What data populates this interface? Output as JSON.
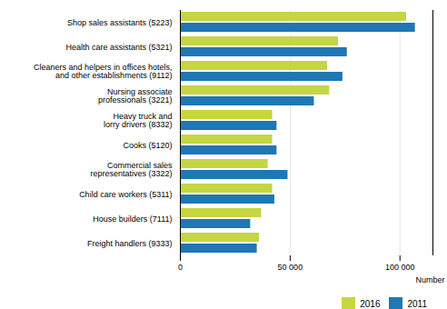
{
  "chart_data": {
    "type": "bar",
    "orientation": "horizontal",
    "categories": [
      "Shop sales assistants (5223)",
      "Health care assistants (5321)",
      "Cleaners and helpers in offices hotels,\nand other establishments (9112)",
      "Nursing associate\nprofessionals (3221)",
      "Heavy truck and\nlorry drivers (8332)",
      "Cooks (5120)",
      "Commercial sales\nrepresentatives (3322)",
      "Child care workers (5311)",
      "House builders (7111)",
      "Freight handlers (9333)"
    ],
    "series": [
      {
        "name": "2016",
        "color": "#c5d640",
        "values": [
          103000,
          72000,
          67000,
          68000,
          42000,
          42000,
          40000,
          42000,
          37000,
          36000
        ]
      },
      {
        "name": "2011",
        "color": "#1f77b4",
        "values": [
          107000,
          76000,
          74000,
          61000,
          44000,
          44000,
          49000,
          43000,
          32000,
          35000
        ]
      }
    ],
    "xlabel": "Number",
    "xlim": [
      0,
      115000
    ],
    "xticks": [
      0,
      {
        "value": 50000,
        "label": "50 000"
      },
      {
        "value": 100000,
        "label": "100 000"
      }
    ],
    "grid": true,
    "legend": "lower right"
  }
}
